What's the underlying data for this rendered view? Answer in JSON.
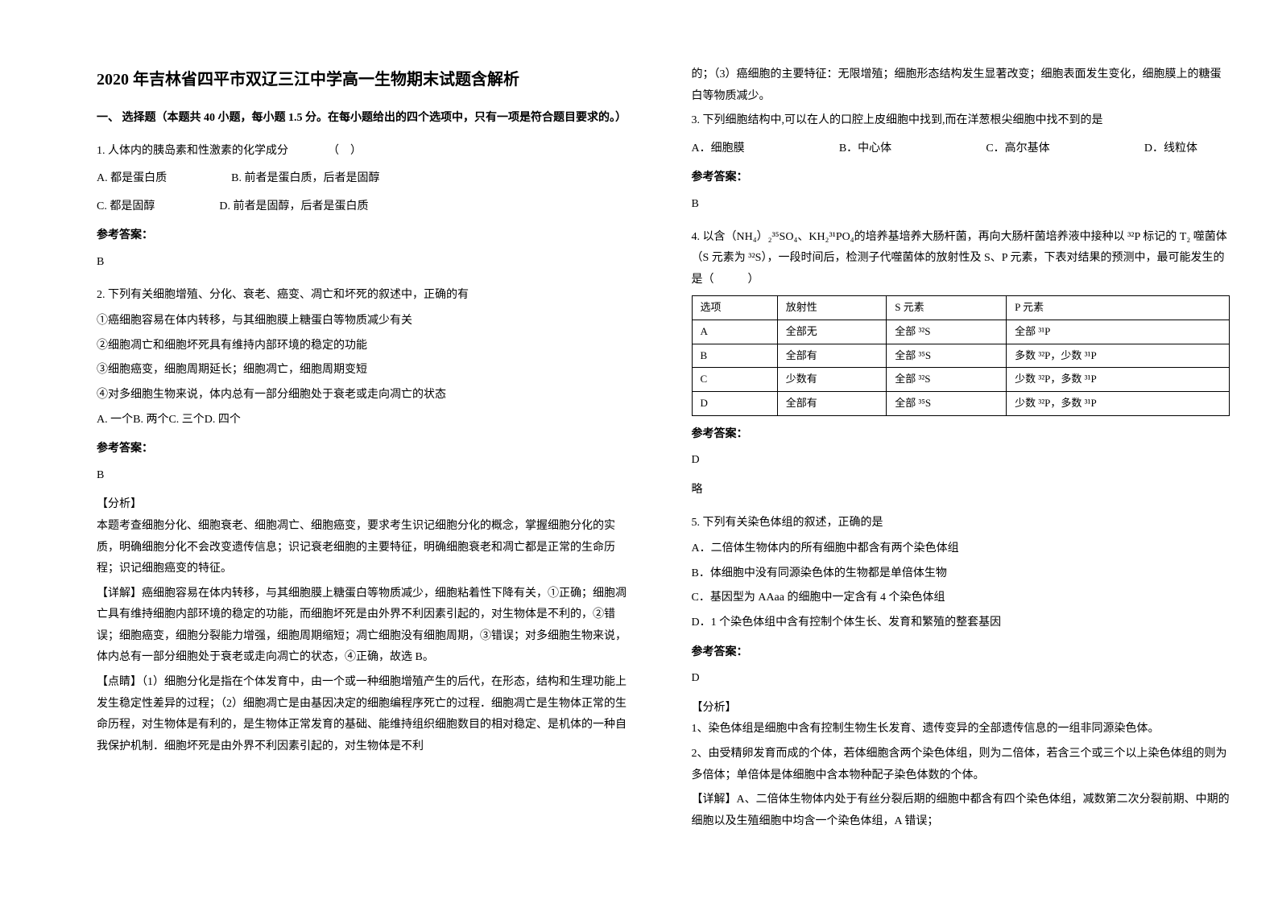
{
  "title": "2020 年吉林省四平市双辽三江中学高一生物期末试题含解析",
  "section1_header": "一、 选择题（本题共 40 小题，每小题 1.5 分。在每小题给出的四个选项中，只有一项是符合题目要求的。）",
  "q1": {
    "text": "1. 人体内的胰岛素和性激素的化学成分　　　　（　）",
    "optA": "A. 都是蛋白质",
    "optB": "B. 前者是蛋白质，后者是固醇",
    "optC": "C. 都是固醇",
    "optD": "D. 前者是固醇，后者是蛋白质",
    "answer_label": "参考答案：",
    "answer": "B"
  },
  "q2": {
    "text": "2. 下列有关细胞增殖、分化、衰老、癌变、凋亡和坏死的叙述中，正确的有",
    "s1": "①癌细胞容易在体内转移，与其细胞膜上糖蛋白等物质减少有关",
    "s2": "②细胞凋亡和细胞坏死具有维持内部环境的稳定的功能",
    "s3": "③细胞癌变，细胞周期延长；细胞凋亡，细胞周期变短",
    "s4": "④对多细胞生物来说，体内总有一部分细胞处于衰老或走向凋亡的状态",
    "opts": "A. 一个B. 两个C. 三个D. 四个",
    "answer_label": "参考答案：",
    "answer": "B",
    "analysis_label": "【分析】",
    "analysis1": "本题考查细胞分化、细胞衰老、细胞凋亡、细胞癌变，要求考生识记细胞分化的概念，掌握细胞分化的实质，明确细胞分化不会改变遗传信息；识记衰老细胞的主要特征，明确细胞衰老和凋亡都是正常的生命历程；识记细胞癌变的特征。",
    "detail_label": "【详解】",
    "detail1": "癌细胞容易在体内转移，与其细胞膜上糖蛋白等物质减少，细胞粘着性下降有关，①正确；细胞凋亡具有维持细胞内部环境的稳定的功能，而细胞坏死是由外界不利因素引起的，对生物体是不利的，②错误；细胞癌变，细胞分裂能力增强，细胞周期缩短；凋亡细胞没有细胞周期，③错误；对多细胞生物来说，体内总有一部分细胞处于衰老或走向凋亡的状态，④正确，故选 B。",
    "point_label": "【点睛】",
    "point1": "（1）细胞分化是指在个体发育中，由一个或一种细胞增殖产生的后代，在形态，结构和生理功能上发生稳定性差异的过程；（2）细胞凋亡是由基因决定的细胞编程序死亡的过程．细胞凋亡是生物体正常的生命历程，对生物体是有利的，是生物体正常发育的基础、能维持组织细胞数目的相对稳定、是机体的一种自我保护机制．细胞坏死是由外界不利因素引起的，对生物体是不利"
  },
  "right1": "的；（3）癌细胞的主要特征：无限增殖；细胞形态结构发生显著改变；细胞表面发生变化，细胞膜上的糖蛋白等物质减少。",
  "q3": {
    "text": "3. 下列细胞结构中,可以在人的口腔上皮细胞中找到,而在洋葱根尖细胞中找不到的是",
    "optA": "A．细胞膜",
    "optB": "B．中心体",
    "optC": "C．高尔基体",
    "optD": "D．线粒体",
    "answer_label": "参考答案：",
    "answer": "B"
  },
  "q4": {
    "text1": "4. 以含（NH₄）₂³⁵SO₄、KH₂³¹PO₄的培养基培养大肠杆菌，再向大肠杆菌培养液中接种以 ³²P 标记的 T₂ 噬菌体（S 元素为 ³²S），一段时间后，检测子代噬菌体的放射性及 S、P 元素，下表对结果的预测中，最可能发生的是（　　　）",
    "table": {
      "headers": [
        "选项",
        "放射性",
        "S 元素",
        "P 元素"
      ],
      "rows": [
        [
          "A",
          "全部无",
          "全部 ³²S",
          "全部 ³¹P"
        ],
        [
          "B",
          "全部有",
          "全部 ³⁵S",
          "多数 ³²P，少数 ³¹P"
        ],
        [
          "C",
          "少数有",
          "全部 ³²S",
          "少数 ³²P，多数 ³¹P"
        ],
        [
          "D",
          "全部有",
          "全部 ³⁵S",
          "少数 ³²P，多数 ³¹P"
        ]
      ]
    },
    "answer_label": "参考答案：",
    "answer": "D",
    "brief": "略"
  },
  "q5": {
    "text": "5. 下列有关染色体组的叙述，正确的是",
    "optA": "A．二倍体生物体内的所有细胞中都含有两个染色体组",
    "optB": "B．体细胞中没有同源染色体的生物都是单倍体生物",
    "optC": "C．基因型为 AAaa 的细胞中一定含有 4 个染色体组",
    "optD": "D．1 个染色体组中含有控制个体生长、发育和繁殖的整套基因",
    "answer_label": "参考答案：",
    "answer": "D",
    "analysis_label": "【分析】",
    "analysis1": "1、染色体组是细胞中含有控制生物生长发育、遗传变异的全部遗传信息的一组非同源染色体。",
    "analysis2": "2、由受精卵发育而成的个体，若体细胞含两个染色体组，则为二倍体，若含三个或三个以上染色体组的则为多倍体；单倍体是体细胞中含本物种配子染色体数的个体。",
    "detail_label": "【详解】",
    "detail1": "A、二倍体生物体内处于有丝分裂后期的细胞中都含有四个染色体组，减数第二次分裂前期、中期的细胞以及生殖细胞中均含一个染色体组，A 错误；"
  }
}
